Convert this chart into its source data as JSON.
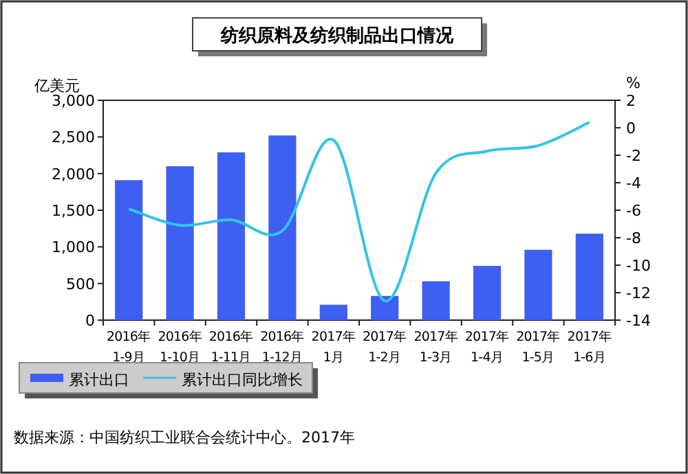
{
  "chart_data": {
    "type": "bar",
    "title": "纺织原料及纺织制品出口情况",
    "ylabel": "亿美元",
    "y2label": "%",
    "categories": [
      "2016年\n1-9月",
      "2016年\n1-10月",
      "2016年\n1-11月",
      "2016年\n1-12月",
      "2017年\n1月",
      "2017年\n1-2月",
      "2017年\n1-3月",
      "2017年\n1-4月",
      "2017年\n1-5月",
      "2017年\n1-6月"
    ],
    "series": [
      {
        "name": "累计出口",
        "color": "#3d5ff2",
        "values": [
          1910,
          2100,
          2290,
          2520,
          210,
          330,
          530,
          740,
          960,
          1180
        ]
      },
      {
        "name": "累计出口同比增长",
        "type": "line",
        "axis": "y2",
        "color": "#33c3e8",
        "values": [
          -5.9,
          -7.1,
          -6.7,
          -7.5,
          -0.9,
          -12.6,
          -3.3,
          -1.7,
          -1.3,
          0.4
        ]
      }
    ],
    "ylim": [
      0,
      3000
    ],
    "yticks": [
      {
        "value": 0,
        "label": "0"
      },
      {
        "value": 500,
        "label": "500"
      },
      {
        "value": 1000,
        "label": "1,000"
      },
      {
        "value": 1500,
        "label": "1,500"
      },
      {
        "value": 2000,
        "label": "2,000"
      },
      {
        "value": 2500,
        "label": "2,500"
      },
      {
        "value": 3000,
        "label": "3,000"
      }
    ],
    "y2lim": [
      -14,
      2
    ],
    "y2ticks": [
      -14,
      -12,
      -10,
      -8,
      -6,
      -4,
      -2,
      0,
      2
    ],
    "legend": "bottom",
    "annotations": [
      "数据来源：中国纺织工业联合会统计中心。2017年"
    ]
  }
}
